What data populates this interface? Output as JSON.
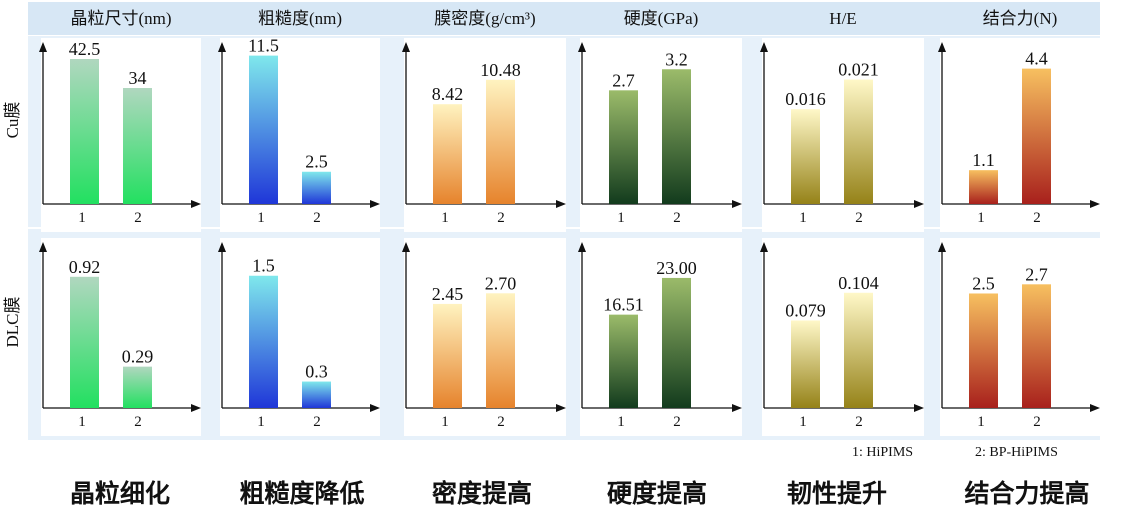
{
  "legend": {
    "item1": "1: HiPIMS",
    "item2": "2: BP-HiPIMS"
  },
  "row_labels": [
    "Cu膜",
    "DLC膜"
  ],
  "bottom_labels": [
    "晶粒细化",
    "粗糙度降低",
    "密度提高",
    "硬度提高",
    "韧性提升",
    "结合力提高"
  ],
  "colors": {
    "header_bg": "#d7e7f5",
    "panel_bg": "#e7f1fa",
    "green": [
      "#b0d7bf",
      "#22e060"
    ],
    "blue": [
      "#7fe8ec",
      "#1f36d8"
    ],
    "orange": [
      "#fff3c0",
      "#e6832c"
    ],
    "darkgreen": [
      "#9bbb6a",
      "#123b1d"
    ],
    "olive": [
      "#fff8c8",
      "#958218"
    ],
    "red": [
      "#f7c060",
      "#a8201c"
    ]
  },
  "chart_data": [
    {
      "type": "bar",
      "title": "晶粒尺寸(nm)",
      "row": "Cu膜",
      "categories": [
        "1",
        "2"
      ],
      "values": [
        42.5,
        34
      ],
      "data_labels": [
        "42.5",
        "34"
      ],
      "color": "green",
      "ylim": [
        0,
        46.9
      ]
    },
    {
      "type": "bar",
      "title": "粗糙度(nm)",
      "row": "Cu膜",
      "categories": [
        "1",
        "2"
      ],
      "values": [
        11.5,
        2.5
      ],
      "data_labels": [
        "11.5",
        "2.5"
      ],
      "color": "blue",
      "ylim": [
        0,
        12.4
      ]
    },
    {
      "type": "bar",
      "title": "膜密度(g/cm³)",
      "row": "Cu膜",
      "categories": [
        "1",
        "2"
      ],
      "values": [
        8.42,
        10.48
      ],
      "data_labels": [
        "8.42",
        "10.48"
      ],
      "color": "orange",
      "ylim": [
        0,
        13.5
      ]
    },
    {
      "type": "bar",
      "title": "硬度(GPa)",
      "row": "Cu膜",
      "categories": [
        "1",
        "2"
      ],
      "values": [
        2.7,
        3.2
      ],
      "data_labels": [
        "2.7",
        "3.2"
      ],
      "color": "darkgreen",
      "ylim": [
        0,
        3.8
      ]
    },
    {
      "type": "bar",
      "title": "H/E",
      "row": "Cu膜",
      "categories": [
        "1",
        "2"
      ],
      "values": [
        0.016,
        0.021
      ],
      "data_labels": [
        "0.016",
        "0.021"
      ],
      "color": "olive",
      "ylim": [
        0,
        0.027
      ]
    },
    {
      "type": "bar",
      "title": "结合力(N)",
      "row": "Cu膜",
      "categories": [
        "1",
        "2"
      ],
      "values": [
        1.1,
        4.4
      ],
      "data_labels": [
        "1.1",
        "4.4"
      ],
      "color": "red",
      "ylim": [
        0,
        5.2
      ]
    },
    {
      "type": "bar",
      "title": "",
      "row": "DLC膜",
      "categories": [
        "1",
        "2"
      ],
      "values": [
        0.92,
        0.29
      ],
      "data_labels": [
        "0.92",
        "0.29"
      ],
      "color": "green",
      "ylim": [
        0,
        1.15
      ]
    },
    {
      "type": "bar",
      "title": "",
      "row": "DLC膜",
      "categories": [
        "1",
        "2"
      ],
      "values": [
        1.5,
        0.3
      ],
      "data_labels": [
        "1.5",
        "0.3"
      ],
      "color": "blue",
      "ylim": [
        0,
        1.86
      ]
    },
    {
      "type": "bar",
      "title": "",
      "row": "DLC膜",
      "categories": [
        "1",
        "2"
      ],
      "values": [
        2.45,
        2.7
      ],
      "data_labels": [
        "2.45",
        "2.70"
      ],
      "color": "orange",
      "ylim": [
        0,
        3.86
      ]
    },
    {
      "type": "bar",
      "title": "",
      "row": "DLC膜",
      "categories": [
        "1",
        "2"
      ],
      "values": [
        16.51,
        23.0
      ],
      "data_labels": [
        "16.51",
        "23.00"
      ],
      "color": "darkgreen",
      "ylim": [
        0,
        29
      ]
    },
    {
      "type": "bar",
      "title": "",
      "row": "DLC膜",
      "categories": [
        "1",
        "2"
      ],
      "values": [
        0.079,
        0.104
      ],
      "data_labels": [
        "0.079",
        "0.104"
      ],
      "color": "olive",
      "ylim": [
        0,
        0.148
      ]
    },
    {
      "type": "bar",
      "title": "",
      "row": "DLC膜",
      "categories": [
        "1",
        "2"
      ],
      "values": [
        2.5,
        2.7
      ],
      "data_labels": [
        "2.5",
        "2.7"
      ],
      "color": "red",
      "ylim": [
        0,
        3.58
      ]
    }
  ]
}
